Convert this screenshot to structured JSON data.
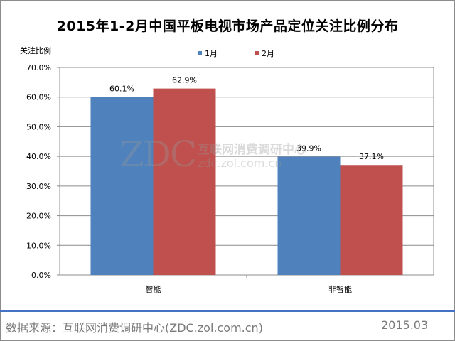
{
  "chart_data": {
    "type": "bar",
    "title": "2015年1-2月中国平板电视市场产品定位关注比例分布",
    "ylabel": "关注比例",
    "xlabel": "",
    "categories": [
      "智能",
      "非智能"
    ],
    "series": [
      {
        "name": "1月",
        "values": [
          60.1,
          39.9
        ],
        "labels": [
          "60.1%",
          "39.9%"
        ],
        "color": "#4f81bd"
      },
      {
        "name": "2月",
        "values": [
          62.9,
          37.1
        ],
        "labels": [
          "62.9%",
          "37.1%"
        ],
        "color": "#c0504d"
      }
    ],
    "ylim": [
      0,
      70
    ],
    "yticks": [
      "0.0%",
      "10.0%",
      "20.0%",
      "30.0%",
      "40.0%",
      "50.0%",
      "60.0%",
      "70.0%"
    ],
    "grid": true,
    "legend_position": "top"
  },
  "watermark": {
    "logo": "ZDC",
    "name": "互联网消费调研中心",
    "url": "zdc.zol.com.cn"
  },
  "footer": {
    "source": "数据来源：互联网消费调研中心(ZDC.zol.com.cn)",
    "date": "2015.03",
    "line_color": "#4472c4"
  }
}
